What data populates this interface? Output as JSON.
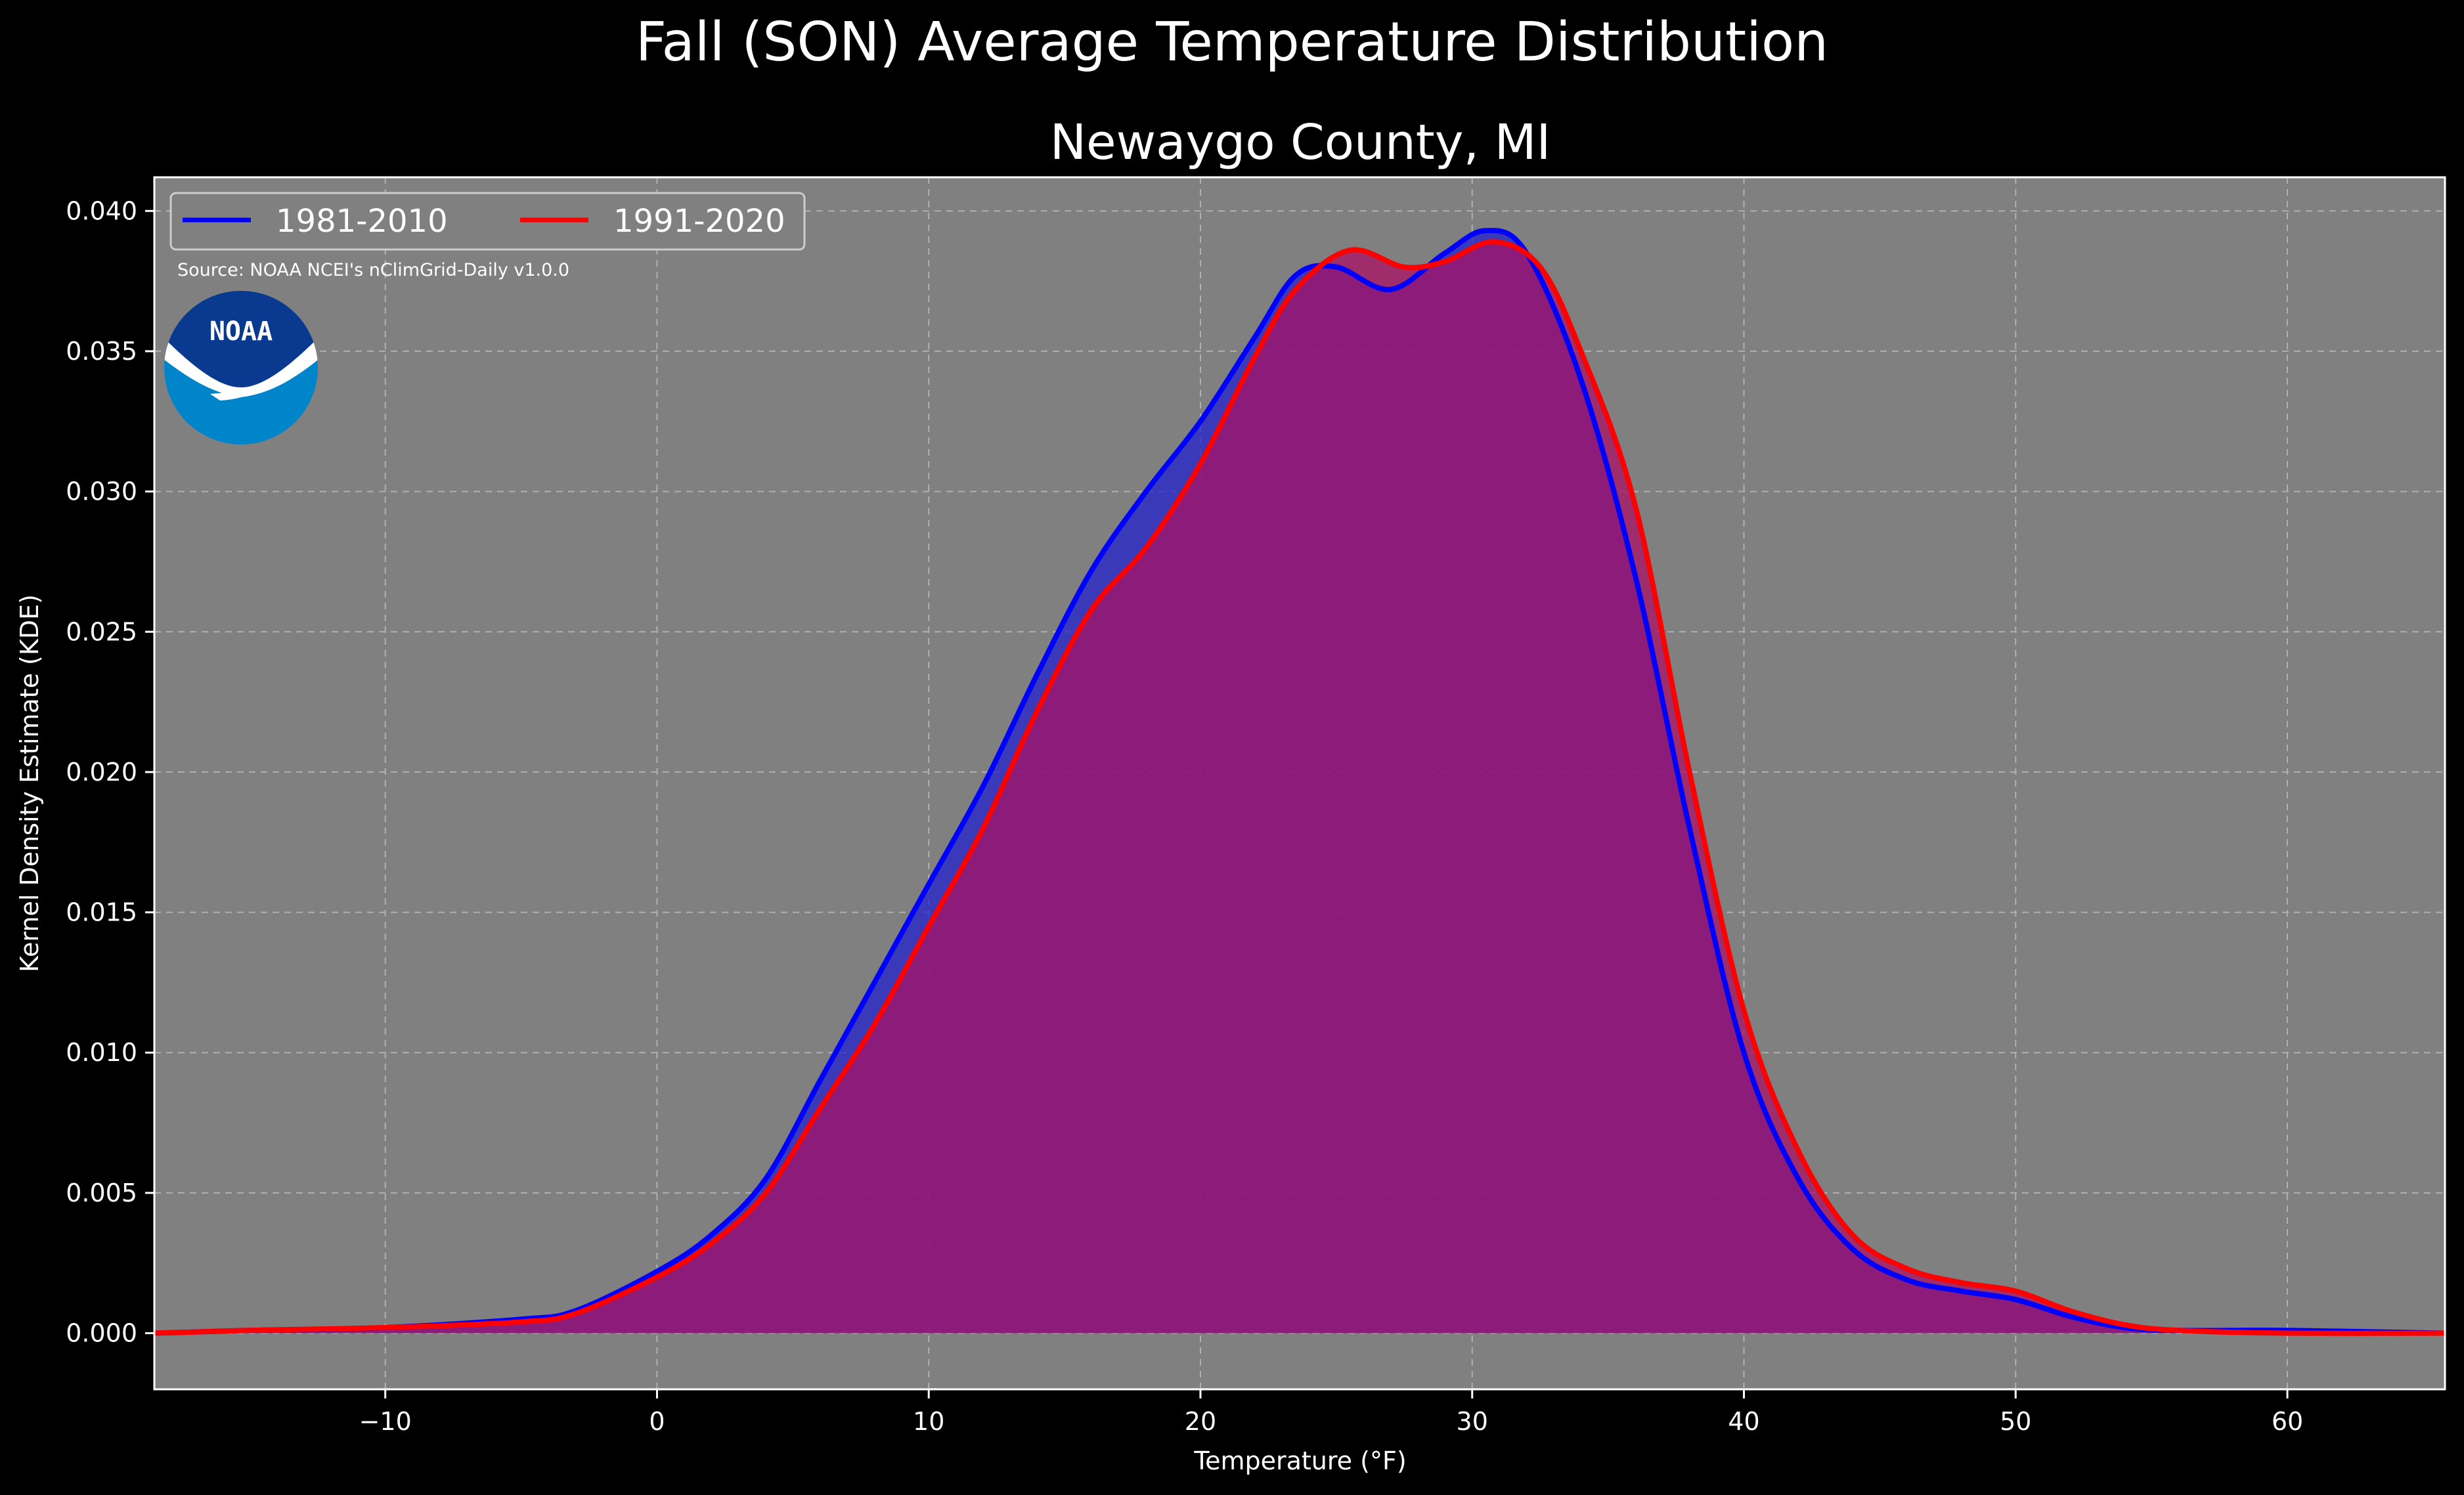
{
  "chart_data": {
    "type": "area",
    "title": "Fall (SON) Average Temperature Distribution",
    "subtitle": "Newaygo County, MI",
    "xlabel": "Temperature (°F)",
    "ylabel": "Kernel Density Estimate (KDE)",
    "xlim": [
      -18.5,
      65.8
    ],
    "ylim": [
      -0.002,
      0.0412
    ],
    "xticks": [
      -10,
      0,
      10,
      20,
      30,
      40,
      50,
      60
    ],
    "xtick_labels": [
      "−10",
      "0",
      "10",
      "20",
      "30",
      "40",
      "50",
      "60"
    ],
    "yticks": [
      0.0,
      0.005,
      0.01,
      0.015,
      0.02,
      0.025,
      0.03,
      0.035,
      0.04
    ],
    "ytick_labels": [
      "0.000",
      "0.005",
      "0.010",
      "0.015",
      "0.020",
      "0.025",
      "0.030",
      "0.035",
      "0.040"
    ],
    "grid": true,
    "legend_position": "top-left",
    "source": "Source: NOAA NCEI's nClimGrid-Daily v1.0.0",
    "logo_text": "NOAA",
    "colors": {
      "background": "#000000",
      "plot_background": "#808080",
      "series_1981": "#0000ff",
      "series_1991": "#ff0000",
      "fill_1981": "#2222cc",
      "fill_1991": "#aa1166",
      "logo_dark": "#0a3a8f",
      "logo_light": "#0085ca"
    },
    "series": [
      {
        "name": "1981-2010",
        "color": "#0000ff",
        "points": [
          [
            -18.5,
            0.0
          ],
          [
            -15,
            0.0001
          ],
          [
            -10,
            0.0002
          ],
          [
            -5,
            0.0005
          ],
          [
            -3,
            0.0008
          ],
          [
            0,
            0.0022
          ],
          [
            2,
            0.0035
          ],
          [
            4,
            0.0055
          ],
          [
            6,
            0.009
          ],
          [
            8,
            0.0125
          ],
          [
            10,
            0.016
          ],
          [
            12,
            0.0195
          ],
          [
            14,
            0.0235
          ],
          [
            16,
            0.0272
          ],
          [
            18,
            0.03
          ],
          [
            20,
            0.0325
          ],
          [
            22,
            0.0355
          ],
          [
            23.5,
            0.0377
          ],
          [
            25,
            0.038
          ],
          [
            27,
            0.0372
          ],
          [
            29,
            0.0385
          ],
          [
            30.5,
            0.0393
          ],
          [
            32,
            0.0385
          ],
          [
            34,
            0.034
          ],
          [
            36,
            0.027
          ],
          [
            38,
            0.018
          ],
          [
            40,
            0.01
          ],
          [
            42,
            0.0055
          ],
          [
            44,
            0.003
          ],
          [
            46,
            0.0019
          ],
          [
            48,
            0.0015
          ],
          [
            50,
            0.0012
          ],
          [
            52,
            0.0006
          ],
          [
            54,
            0.0002
          ],
          [
            56,
            0.0001
          ],
          [
            60,
            0.0001
          ],
          [
            65.8,
            0.0
          ]
        ]
      },
      {
        "name": "1991-2020",
        "color": "#ff0000",
        "points": [
          [
            -18.5,
            0.0
          ],
          [
            -15,
            0.0001
          ],
          [
            -10,
            0.0002
          ],
          [
            -5,
            0.0004
          ],
          [
            -3,
            0.0007
          ],
          [
            0,
            0.002
          ],
          [
            2,
            0.0032
          ],
          [
            4,
            0.005
          ],
          [
            6,
            0.008
          ],
          [
            8,
            0.011
          ],
          [
            10,
            0.0145
          ],
          [
            12,
            0.018
          ],
          [
            14,
            0.0222
          ],
          [
            16,
            0.0258
          ],
          [
            18,
            0.028
          ],
          [
            20,
            0.031
          ],
          [
            22,
            0.0348
          ],
          [
            23.5,
            0.0372
          ],
          [
            25.5,
            0.0386
          ],
          [
            27.5,
            0.038
          ],
          [
            29,
            0.0382
          ],
          [
            30.8,
            0.0389
          ],
          [
            32.5,
            0.038
          ],
          [
            34,
            0.035
          ],
          [
            36,
            0.0295
          ],
          [
            38,
            0.02
          ],
          [
            40,
            0.0115
          ],
          [
            42,
            0.0065
          ],
          [
            44,
            0.0035
          ],
          [
            46,
            0.0023
          ],
          [
            48,
            0.0018
          ],
          [
            50,
            0.0015
          ],
          [
            52,
            0.0008
          ],
          [
            54,
            0.0003
          ],
          [
            56,
            0.0001
          ],
          [
            60,
            0.0
          ],
          [
            65.8,
            0.0
          ]
        ]
      }
    ]
  }
}
